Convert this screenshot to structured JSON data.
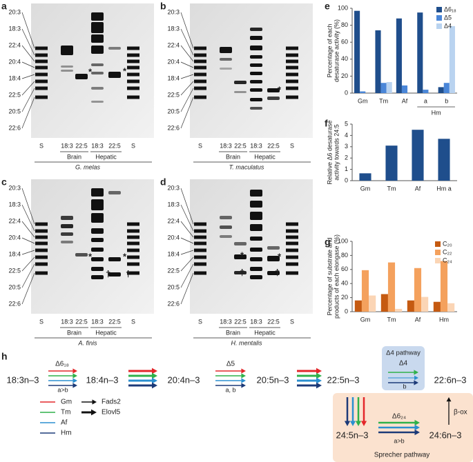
{
  "gels": [
    {
      "panel": "a",
      "ladder": [
        "20:3",
        "18:3",
        "22:4",
        "20:4",
        "18:4",
        "22:5",
        "20:5",
        "22:6"
      ],
      "lanes": [
        "S",
        "18:3",
        "22:5",
        "18:3",
        "22:5",
        "S"
      ],
      "groups": [
        "Brain",
        "Hepatic"
      ],
      "species": "G. melas",
      "symbols": [
        "*",
        "*"
      ]
    },
    {
      "panel": "b",
      "ladder": [
        "20:3",
        "18:3",
        "22:4",
        "20:4",
        "18:4",
        "22:5",
        "20:5",
        "22:6"
      ],
      "lanes": [
        "S",
        "18:3",
        "22:5",
        "18:3",
        "22:5",
        "S"
      ],
      "groups": [
        "Brain",
        "Hepatic"
      ],
      "species": "T. maculatus",
      "symbols": [
        "*"
      ]
    },
    {
      "panel": "c",
      "ladder": [
        "20:3",
        "18:3",
        "22:4",
        "20:4",
        "18:4",
        "22:5",
        "20:5",
        "22:6"
      ],
      "lanes": [
        "S",
        "18:3",
        "22:5",
        "18:3",
        "22:5",
        "S"
      ],
      "groups": [
        "Brain",
        "Hepatic"
      ],
      "species": "A. finis",
      "symbols": [
        "*",
        "*",
        "†",
        "†"
      ]
    },
    {
      "panel": "d",
      "ladder": [
        "20:3",
        "18:3",
        "22:4",
        "20:4",
        "18:4",
        "22:5",
        "20:5",
        "22:6"
      ],
      "lanes": [
        "S",
        "18:3",
        "22:5",
        "18:3",
        "22:5",
        "S"
      ],
      "groups": [
        "Brain",
        "Hepatic"
      ],
      "species": "H. mentalis",
      "symbols": [
        "*",
        "*",
        "†",
        "†"
      ]
    }
  ],
  "chart_data": [
    {
      "type": "bar",
      "panel": "e",
      "ylabel": [
        "Percentage of each",
        "desaturase activity (%)"
      ],
      "categories": [
        "Gm",
        "Tm",
        "Af",
        "a",
        "b"
      ],
      "category_groups": [
        {
          "name": "Hm",
          "categories": [
            "a",
            "b"
          ]
        }
      ],
      "series": [
        {
          "name": "Δ6₁₈",
          "color": "#1f4e8c",
          "values": [
            97,
            74,
            88,
            95,
            7
          ]
        },
        {
          "name": "Δ5",
          "color": "#4a86d8",
          "values": [
            2,
            12,
            9,
            4,
            12
          ]
        },
        {
          "name": "Δ4",
          "color": "#b9d3f0",
          "values": [
            0,
            13,
            0,
            0,
            79
          ]
        }
      ],
      "ylim": [
        0,
        100
      ],
      "yticks": [
        0,
        20,
        40,
        60,
        80,
        100
      ]
    },
    {
      "type": "bar",
      "panel": "f",
      "ylabel": [
        "Relative Δ6 desaturase",
        "activity towards 24:5"
      ],
      "categories": [
        "Gm",
        "Tm",
        "Af",
        "Hm a"
      ],
      "values": [
        0.65,
        3.1,
        4.5,
        3.7
      ],
      "color": "#1f4e8c",
      "ylim": [
        0,
        5
      ],
      "yticks": [
        0,
        1,
        2,
        3,
        4,
        5
      ]
    },
    {
      "type": "bar",
      "panel": "g",
      "ylabel": [
        "Percentage of substrate and",
        "products of each elongase (%)"
      ],
      "categories": [
        "Gm",
        "Tm",
        "Af",
        "Hm"
      ],
      "series": [
        {
          "name": "C₂₀",
          "color": "#c55a11",
          "values": [
            16,
            25,
            16,
            14
          ]
        },
        {
          "name": "C₂₂",
          "color": "#f4a15d",
          "values": [
            59,
            70,
            62,
            72
          ]
        },
        {
          "name": "C₂₄",
          "color": "#fbd5b5",
          "values": [
            23,
            4,
            21,
            12
          ]
        }
      ],
      "ylim": [
        0,
        100
      ],
      "yticks": [
        0,
        20,
        40,
        60,
        80,
        100
      ]
    }
  ],
  "pathway": {
    "panel": "h",
    "nodes": [
      "18:3n–3",
      "18:4n–3",
      "20:4n–3",
      "20:5n–3",
      "22:5n–3",
      "22:6n–3",
      "24:5n–3",
      "24:6n–3"
    ],
    "labels": {
      "d6_18": "Δ6₁₈",
      "d5": "Δ5",
      "d4_pathway": "Δ4 pathway",
      "d4": "Δ4",
      "d6_24": "Δ6₂₄",
      "beta_ox": "β-ox",
      "sprecher": "Sprecher pathway"
    },
    "notes": [
      "a>b",
      "a, b",
      "b",
      "a>b"
    ],
    "species": [
      {
        "name": "Gm",
        "color": "#e3262a"
      },
      {
        "name": "Tm",
        "color": "#2fb14a"
      },
      {
        "name": "Af",
        "color": "#2a8fd0"
      },
      {
        "name": "Hm",
        "color": "#1c3a78"
      }
    ],
    "enzymes": [
      "Fads2",
      "Elovl5"
    ]
  }
}
